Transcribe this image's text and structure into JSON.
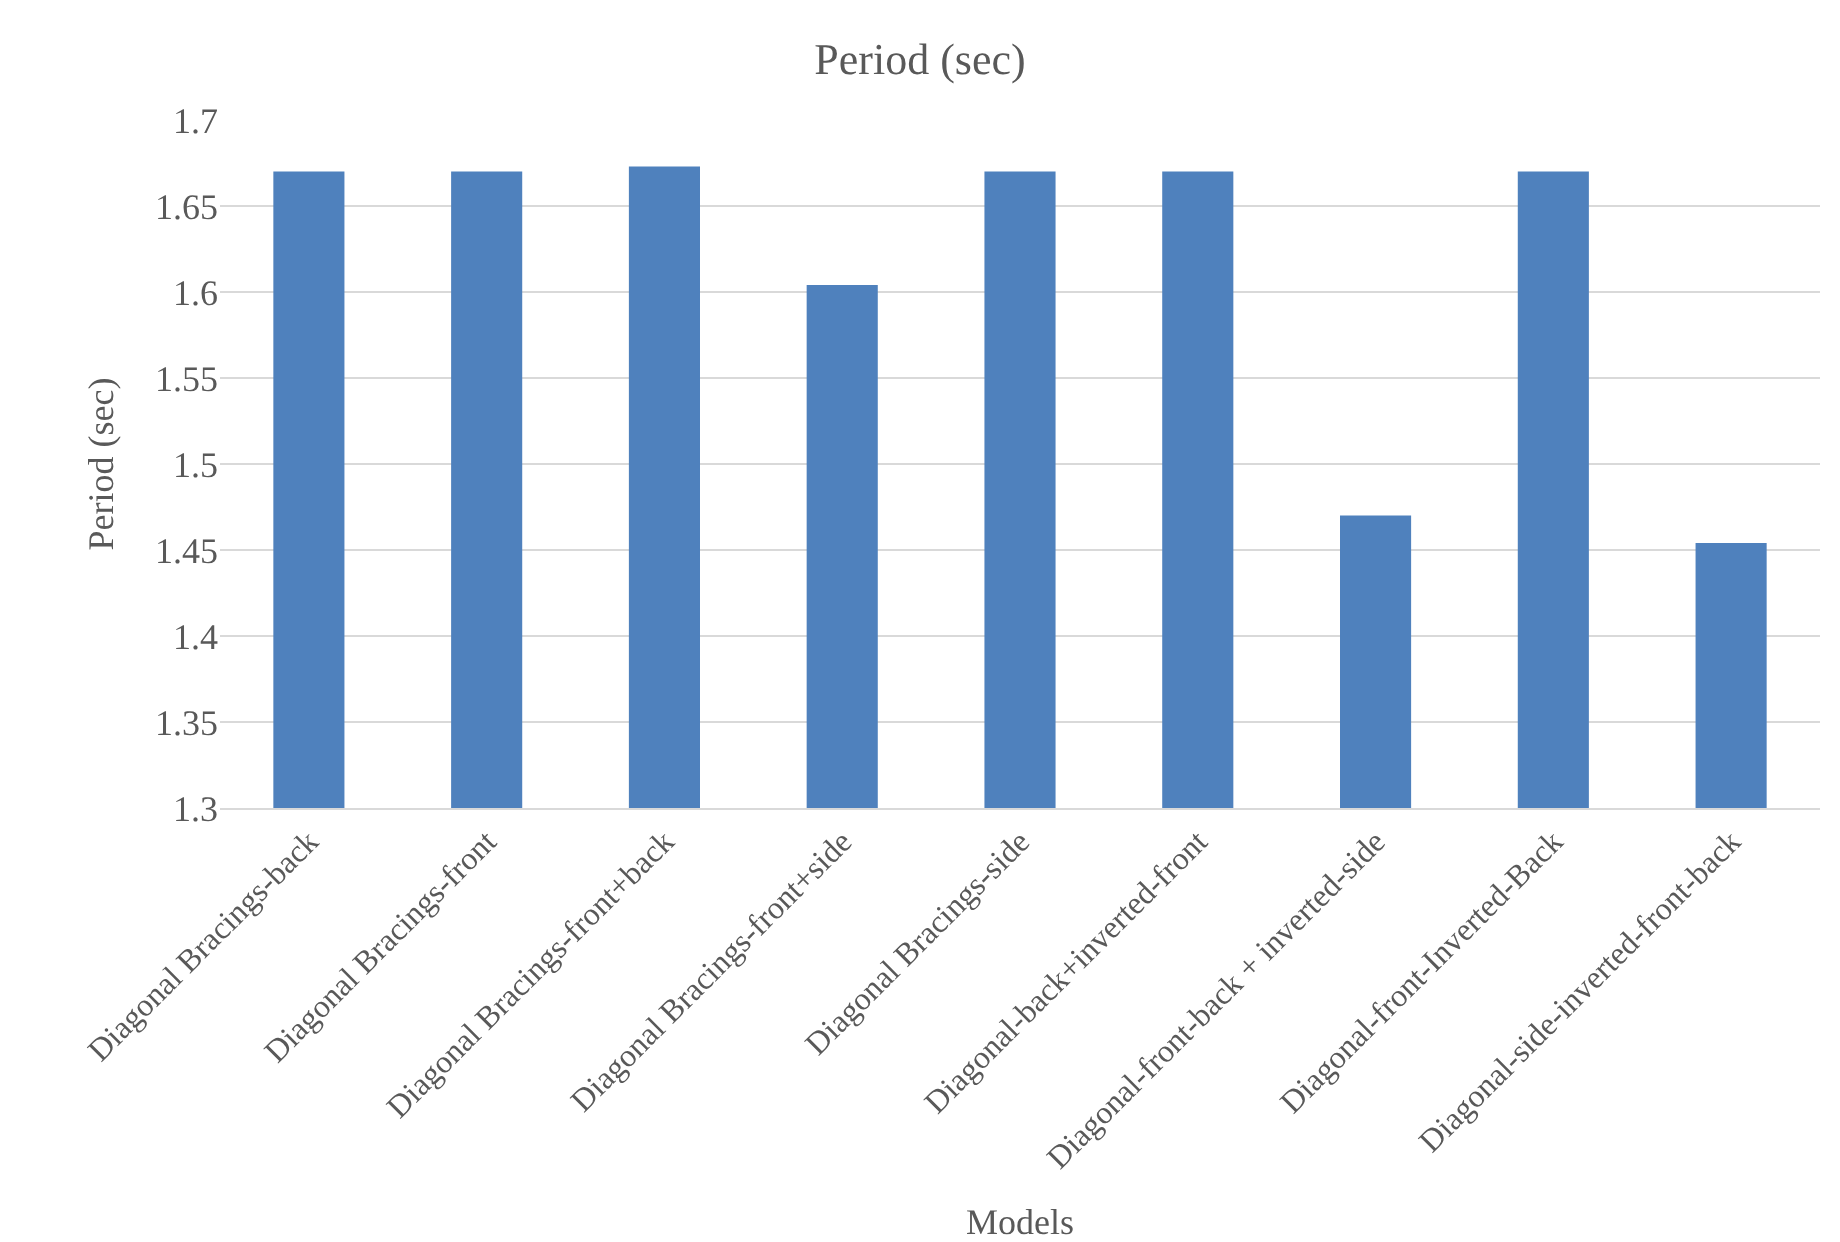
{
  "chart_data": {
    "type": "bar",
    "title": "Period (sec)",
    "xlabel": "Models",
    "ylabel": "Period (sec)",
    "categories": [
      "Diagonal Bracings-back",
      "Diagonal Bracings-front",
      "Diagonal Bracings-front+back",
      "Diagonal Bracings-front+side",
      "Diagonal Bracings-side",
      "Diagonal-back+inverted-front",
      "Diagonal-front-back + inverted-side",
      "Diagonal-front-Inverted-Back",
      "Diagonal-side-inverted-front-back"
    ],
    "values": [
      1.67,
      1.67,
      1.673,
      1.604,
      1.67,
      1.67,
      1.47,
      1.67,
      1.454
    ],
    "color": "#4f81bd",
    "ylim": [
      1.3,
      1.7
    ],
    "yticks": [
      1.3,
      1.35,
      1.4,
      1.45,
      1.5,
      1.55,
      1.6,
      1.65,
      1.7
    ],
    "grid": "y"
  }
}
